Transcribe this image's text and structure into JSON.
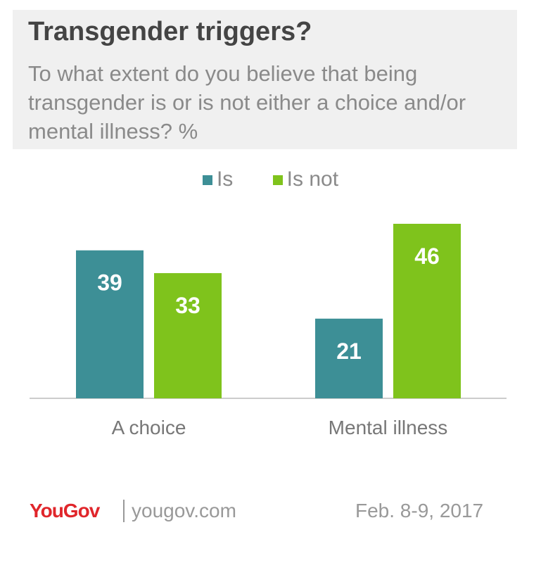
{
  "header": {
    "title": "Transgender triggers?",
    "subtitle": "To what extent do you believe that being transgender is or is not either a choice and/or mental illness? %"
  },
  "footer": {
    "logo": "YouGov",
    "site": "yougov.com",
    "date": "Feb. 8-9, 2017"
  },
  "colors": {
    "is": "#3d8f96",
    "is_not": "#7fc31c"
  },
  "chart_data": {
    "type": "bar",
    "title": "Transgender triggers?",
    "categories": [
      "A choice",
      "Mental illness"
    ],
    "series": [
      {
        "name": "Is",
        "values": [
          39,
          21
        ]
      },
      {
        "name": "Is not",
        "values": [
          33,
          46
        ]
      }
    ],
    "ylim": [
      0,
      46
    ],
    "grid": false,
    "legend": "top-center"
  }
}
